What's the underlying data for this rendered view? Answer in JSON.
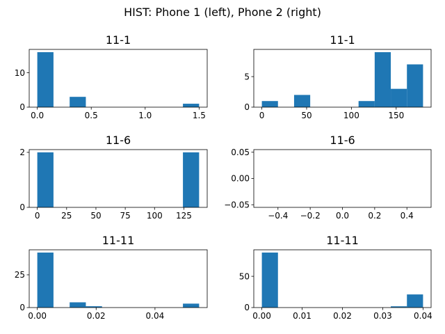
{
  "figure": {
    "suptitle": "HIST: Phone 1 (left), Phone 2 (right)"
  },
  "colors": {
    "bar": "#1f77b4",
    "axis": "#000000",
    "background": "#ffffff"
  },
  "chart_data": [
    {
      "type": "bar",
      "title": "11-1",
      "xlim": [
        -0.075,
        1.575
      ],
      "ylim": [
        0,
        16.8
      ],
      "xticks": [
        0.0,
        0.5,
        1.0,
        1.5
      ],
      "xtick_labels": [
        "0.0",
        "0.5",
        "1.0",
        "1.5"
      ],
      "yticks": [
        0,
        10
      ],
      "ytick_labels": [
        "0",
        "10"
      ],
      "bins": [
        [
          0.0,
          0.15
        ],
        [
          0.15,
          0.3
        ],
        [
          0.3,
          0.45
        ],
        [
          0.45,
          0.6
        ],
        [
          0.6,
          0.75
        ],
        [
          0.75,
          0.9
        ],
        [
          0.9,
          1.05
        ],
        [
          1.05,
          1.2
        ],
        [
          1.2,
          1.35
        ],
        [
          1.35,
          1.5
        ]
      ],
      "counts": [
        16,
        0,
        3,
        0,
        0,
        0,
        0,
        0,
        0,
        1
      ]
    },
    {
      "type": "bar",
      "title": "11-1",
      "xlim": [
        -9,
        189
      ],
      "ylim": [
        0,
        9.45
      ],
      "xticks": [
        0,
        50,
        100,
        150
      ],
      "xtick_labels": [
        "0",
        "50",
        "100",
        "150"
      ],
      "yticks": [
        0,
        5
      ],
      "ytick_labels": [
        "0",
        "5"
      ],
      "bins": [
        [
          0,
          18
        ],
        [
          18,
          36
        ],
        [
          36,
          54
        ],
        [
          54,
          72
        ],
        [
          72,
          90
        ],
        [
          90,
          108
        ],
        [
          108,
          126
        ],
        [
          126,
          144
        ],
        [
          144,
          162
        ],
        [
          162,
          180
        ]
      ],
      "counts": [
        1,
        0,
        2,
        0,
        0,
        0,
        1,
        9,
        3,
        7
      ]
    },
    {
      "type": "bar",
      "title": "11-6",
      "xlim": [
        -6.9,
        144.9
      ],
      "ylim": [
        0,
        2.1
      ],
      "xticks": [
        0,
        25,
        50,
        75,
        100,
        125
      ],
      "xtick_labels": [
        "0",
        "25",
        "50",
        "75",
        "100",
        "125"
      ],
      "yticks": [
        0,
        2
      ],
      "ytick_labels": [
        "0",
        "2"
      ],
      "bins": [
        [
          0,
          13.8
        ],
        [
          13.8,
          27.6
        ],
        [
          27.6,
          41.4
        ],
        [
          41.4,
          55.2
        ],
        [
          55.2,
          69
        ],
        [
          69,
          82.8
        ],
        [
          82.8,
          96.6
        ],
        [
          96.6,
          110.4
        ],
        [
          110.4,
          124.2
        ],
        [
          124.2,
          138
        ]
      ],
      "counts": [
        2,
        0,
        0,
        0,
        0,
        0,
        0,
        0,
        0,
        2
      ]
    },
    {
      "type": "bar",
      "title": "11-6",
      "xlim": [
        -0.55,
        0.55
      ],
      "ylim": [
        -0.055,
        0.055
      ],
      "xticks": [
        -0.4,
        -0.2,
        0.0,
        0.2,
        0.4
      ],
      "xtick_labels": [
        "−0.4",
        "−0.2",
        "0.0",
        "0.2",
        "0.4"
      ],
      "yticks": [
        -0.05,
        0.0,
        0.05
      ],
      "ytick_labels": [
        "−0.05",
        "0.00",
        "0.05"
      ],
      "bins": [],
      "counts": []
    },
    {
      "type": "bar",
      "title": "11-11",
      "xlim": [
        -0.00275,
        0.05775
      ],
      "ylim": [
        0,
        44.1
      ],
      "xticks": [
        0.0,
        0.02,
        0.04
      ],
      "xtick_labels": [
        "0.00",
        "0.02",
        "0.04"
      ],
      "yticks": [
        0,
        25
      ],
      "ytick_labels": [
        "0",
        "25"
      ],
      "bins": [
        [
          0.0,
          0.0055
        ],
        [
          0.0055,
          0.011
        ],
        [
          0.011,
          0.0165
        ],
        [
          0.0165,
          0.022
        ],
        [
          0.022,
          0.0275
        ],
        [
          0.0275,
          0.033
        ],
        [
          0.033,
          0.0385
        ],
        [
          0.0385,
          0.044
        ],
        [
          0.044,
          0.0495
        ],
        [
          0.0495,
          0.055
        ]
      ],
      "counts": [
        42,
        0,
        4,
        1,
        0,
        0,
        0,
        0,
        0,
        3
      ]
    },
    {
      "type": "bar",
      "title": "11-11",
      "xlim": [
        -0.002,
        0.042
      ],
      "ylim": [
        0,
        92.4
      ],
      "xticks": [
        0.0,
        0.01,
        0.02,
        0.03,
        0.04
      ],
      "xtick_labels": [
        "0.00",
        "0.01",
        "0.02",
        "0.03",
        "0.04"
      ],
      "yticks": [
        0,
        50
      ],
      "ytick_labels": [
        "0",
        "50"
      ],
      "bins": [
        [
          0.0,
          0.004
        ],
        [
          0.004,
          0.008
        ],
        [
          0.008,
          0.012
        ],
        [
          0.012,
          0.016
        ],
        [
          0.016,
          0.02
        ],
        [
          0.02,
          0.024
        ],
        [
          0.024,
          0.028
        ],
        [
          0.028,
          0.032
        ],
        [
          0.032,
          0.036
        ],
        [
          0.036,
          0.04
        ]
      ],
      "counts": [
        88,
        0,
        0,
        0,
        0,
        0,
        0,
        0,
        2,
        21
      ]
    }
  ]
}
